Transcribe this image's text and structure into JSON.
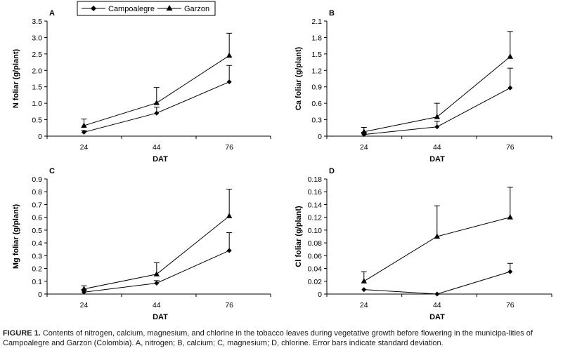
{
  "legend": {
    "series": [
      {
        "name": "Campoalegre",
        "marker": "diamond"
      },
      {
        "name": "Garzon",
        "marker": "triangle"
      }
    ]
  },
  "caption": {
    "label": "FIGURE 1.",
    "text": "Contents of nitrogen, calcium, magnesium, and chlorine in the tobacco leaves during vegetative growth before flowering in the municipa-lities of Campoalegre and Garzon (Colombia). A, nitrogen; B, calcium; C, magnesium; D, chlorine. Error bars indicate standard deviation."
  },
  "colors": {
    "line": "#000000",
    "text": "#000000"
  },
  "chart_data": [
    {
      "type": "line",
      "panel": "A",
      "title": "",
      "xlabel": "DAT",
      "ylabel": "N foliar (g/plant)",
      "categories": [
        "24",
        "44",
        "76"
      ],
      "x": [
        24,
        44,
        76
      ],
      "ylim": [
        0,
        3.5
      ],
      "yticks": [
        "0",
        "0.5",
        "1.0",
        "1.5",
        "2.0",
        "2.5",
        "3.0",
        "3.5"
      ],
      "series": [
        {
          "name": "Campoalegre",
          "values": [
            0.12,
            0.7,
            1.65
          ],
          "error": [
            0.05,
            0.18,
            0.5
          ]
        },
        {
          "name": "Garzon",
          "values": [
            0.32,
            1.01,
            2.45
          ],
          "error": [
            0.2,
            0.47,
            0.68
          ]
        }
      ]
    },
    {
      "type": "line",
      "panel": "B",
      "title": "",
      "xlabel": "DAT",
      "ylabel": "Ca foliar (g/plant)",
      "categories": [
        "24",
        "44",
        "76"
      ],
      "x": [
        24,
        44,
        76
      ],
      "ylim": [
        0,
        2.1
      ],
      "yticks": [
        "0",
        "0.3",
        "0.6",
        "0.9",
        "1.2",
        "1.5",
        "1.8",
        "2.1"
      ],
      "series": [
        {
          "name": "Campoalegre",
          "values": [
            0.03,
            0.17,
            0.88
          ],
          "error": [
            0.04,
            0.1,
            0.36
          ]
        },
        {
          "name": "Garzon",
          "values": [
            0.08,
            0.35,
            1.45
          ],
          "error": [
            0.08,
            0.25,
            0.46
          ]
        }
      ]
    },
    {
      "type": "line",
      "panel": "C",
      "title": "",
      "xlabel": "DAT",
      "ylabel": "Mg foliar (g/plant)",
      "categories": [
        "24",
        "44",
        "76"
      ],
      "x": [
        24,
        44,
        76
      ],
      "ylim": [
        0,
        0.9
      ],
      "yticks": [
        "0",
        "0.1",
        "0.2",
        "0.3",
        "0.4",
        "0.5",
        "0.6",
        "0.7",
        "0.8",
        "0.9"
      ],
      "series": [
        {
          "name": "Campoalegre",
          "values": [
            0.015,
            0.085,
            0.34
          ],
          "error": [
            0.02,
            0.02,
            0.14
          ]
        },
        {
          "name": "Garzon",
          "values": [
            0.04,
            0.155,
            0.61
          ],
          "error": [
            0.025,
            0.09,
            0.21
          ]
        }
      ]
    },
    {
      "type": "line",
      "panel": "D",
      "title": "",
      "xlabel": "DAT",
      "ylabel": "Cl foliar (g/plant)",
      "categories": [
        "24",
        "44",
        "76"
      ],
      "x": [
        24,
        44,
        76
      ],
      "ylim": [
        0,
        0.18
      ],
      "yticks": [
        "0",
        "0.02",
        "0.04",
        "0.06",
        "0.08",
        "0.10",
        "0.12",
        "0.14",
        "0.16",
        "0.18"
      ],
      "series": [
        {
          "name": "Campoalegre",
          "values": [
            0.007,
            0.0,
            0.035
          ],
          "error": [
            0.0,
            0.0,
            0.013
          ]
        },
        {
          "name": "Garzon",
          "values": [
            0.02,
            0.09,
            0.12
          ],
          "error": [
            0.015,
            0.048,
            0.047
          ]
        }
      ]
    }
  ]
}
